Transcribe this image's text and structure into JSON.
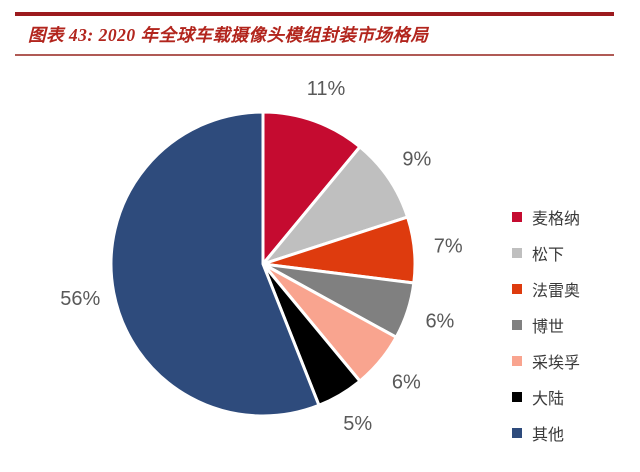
{
  "header": {
    "title": "图表 43: 2020 年全球车载摄像头模组封装市场格局",
    "title_color": "#B2251D",
    "rule_top_color": "#9C1A1E",
    "rule_bottom_color": "#B05A55"
  },
  "chart_data": {
    "type": "pie",
    "title": "图表 43: 2020 年全球车载摄像头模组封装市场格局",
    "start_angle_deg": 0,
    "direction": "clockwise",
    "legend_position": "right",
    "grid": false,
    "slices": [
      {
        "label": "麦格纳",
        "value": 11,
        "display": "11%",
        "color": "#C50B30"
      },
      {
        "label": "松下",
        "value": 9,
        "display": "9%",
        "color": "#BFBFBF"
      },
      {
        "label": "法雷奥",
        "value": 7,
        "display": "7%",
        "color": "#DE3B0E"
      },
      {
        "label": "博世",
        "value": 6,
        "display": "6%",
        "color": "#808080"
      },
      {
        "label": "采埃孚",
        "value": 6,
        "display": "6%",
        "color": "#F9A48F"
      },
      {
        "label": "大陆",
        "value": 5,
        "display": "5%",
        "color": "#000000"
      },
      {
        "label": "其他",
        "value": 56,
        "display": "56%",
        "color": "#2E4B7C"
      }
    ],
    "data_label_color": "#595959",
    "slice_border_color": "#FFFFFF"
  }
}
